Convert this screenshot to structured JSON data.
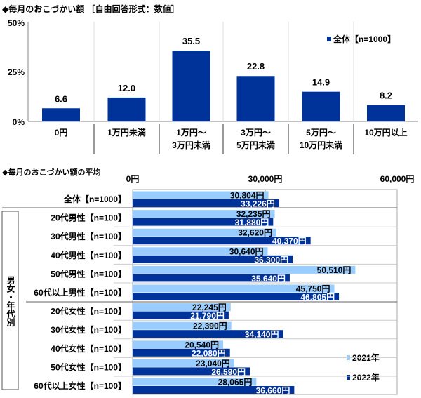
{
  "chart_data": [
    {
      "type": "bar",
      "title": "◆毎月のおこづかい額 ［自由回答形式：数値］",
      "categories": [
        "0円",
        "1万円未満",
        "1万円～\n3万円未満",
        "3万円～\n5万円未満",
        "5万円～\n10万円未満",
        "10万円以上"
      ],
      "series": [
        {
          "name": "全体【n=1000】",
          "values": [
            6.6,
            12.0,
            35.5,
            22.8,
            14.9,
            8.2
          ]
        }
      ],
      "value_labels": [
        "6.6",
        "12.0",
        "35.5",
        "22.8",
        "14.9",
        "8.2"
      ],
      "ylim": [
        0,
        50
      ],
      "yticks": [
        "0%",
        "25%",
        "50%"
      ],
      "legend": "top-right",
      "colors": {
        "bar": "#003399"
      }
    },
    {
      "type": "bar",
      "orientation": "horizontal",
      "title": "◆毎月のおこづかい額の平均",
      "group_label": "男女・年代別",
      "categories": [
        "全体【n=1000】",
        "20代男性【n=100】",
        "30代男性【n=100】",
        "40代男性【n=100】",
        "50代男性【n=100】",
        "60代以上男性【n=100】",
        "20代女性【n=100】",
        "30代女性【n=100】",
        "40代女性【n=100】",
        "50代女性【n=100】",
        "60代以上女性【n=100】"
      ],
      "series": [
        {
          "name": "2021年",
          "values": [
            30804,
            32235,
            32620,
            30640,
            50510,
            45750,
            22245,
            22390,
            20540,
            23040,
            28065
          ],
          "labels": [
            "30,804円",
            "32,235円",
            "32,620円",
            "30,640円",
            "50,510円",
            "45,750円",
            "22,245円",
            "22,390円",
            "20,540円",
            "23,040円",
            "28,065円"
          ]
        },
        {
          "name": "2022年",
          "values": [
            33226,
            31880,
            40370,
            36300,
            35640,
            46805,
            21790,
            34140,
            22080,
            26590,
            36660
          ],
          "labels": [
            "33,226円",
            "31,880円",
            "40,370円",
            "36,300円",
            "35,640円",
            "46,805円",
            "21,790円",
            "34,140円",
            "22,080円",
            "26,590円",
            "36,660円"
          ]
        }
      ],
      "xlim": [
        0,
        60000
      ],
      "xticks": [
        "0円",
        "30,000円",
        "60,000円"
      ],
      "legend": "bottom-right",
      "colors": {
        "2021年": "#99CCFF",
        "2022年": "#003399"
      }
    }
  ]
}
